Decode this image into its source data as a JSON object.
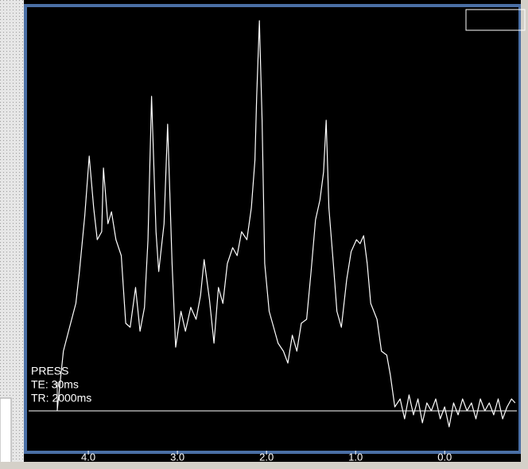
{
  "chart_data": {
    "type": "line",
    "annotations": [
      "PRESS",
      "TE: 30ms",
      "TR: 2000ms"
    ],
    "x": [
      4.35,
      4.28,
      4.21,
      4.14,
      4.1,
      4.04,
      3.99,
      3.94,
      3.9,
      3.85,
      3.83,
      3.78,
      3.74,
      3.69,
      3.63,
      3.58,
      3.53,
      3.47,
      3.42,
      3.37,
      3.33,
      3.29,
      3.24,
      3.21,
      3.15,
      3.11,
      3.06,
      3.02,
      2.96,
      2.91,
      2.85,
      2.79,
      2.74,
      2.7,
      2.64,
      2.59,
      2.54,
      2.49,
      2.44,
      2.38,
      2.33,
      2.28,
      2.22,
      2.17,
      2.13,
      2.11,
      2.08,
      2.05,
      2.02,
      1.97,
      1.92,
      1.87,
      1.81,
      1.76,
      1.71,
      1.66,
      1.61,
      1.55,
      1.5,
      1.45,
      1.4,
      1.36,
      1.33,
      1.3,
      1.25,
      1.21,
      1.16,
      1.1,
      1.05,
      0.99,
      0.95,
      0.91,
      0.87,
      0.83,
      0.76,
      0.71,
      0.65,
      0.61,
      0.56,
      0.5,
      0.45,
      0.4,
      0.35,
      0.3,
      0.25,
      0.2,
      0.15,
      0.1,
      0.05,
      0.0,
      -0.05,
      -0.1,
      -0.15,
      -0.2,
      -0.25,
      -0.3,
      -0.35,
      -0.4,
      -0.45,
      -0.5,
      -0.55,
      -0.6,
      -0.65,
      -0.7,
      -0.75,
      -0.79
    ],
    "series": [
      {
        "color": "#ffffff",
        "values": [
          0,
          15,
          21,
          27,
          35,
          49,
          64,
          51,
          43,
          45,
          61,
          47,
          50,
          43,
          39,
          22,
          21,
          31,
          20,
          26,
          43,
          79,
          45,
          35,
          47,
          72,
          37,
          16,
          25,
          20,
          26,
          23,
          29,
          38,
          28,
          17,
          31,
          27,
          37,
          41,
          39,
          45,
          43,
          51,
          63,
          79,
          98,
          73,
          37,
          25,
          21,
          17,
          15,
          12,
          19,
          15,
          22,
          23,
          35,
          48,
          53,
          60,
          73,
          51,
          37,
          25,
          21,
          33,
          40,
          43,
          42,
          44,
          37,
          27,
          23,
          15,
          14,
          9,
          1,
          3,
          -2,
          4,
          -1,
          3,
          -3,
          2,
          0,
          3,
          -2,
          1,
          -4,
          2,
          -1,
          3,
          0,
          2,
          -2,
          3,
          0,
          2,
          -1,
          3,
          -2,
          1,
          3,
          2
        ]
      }
    ],
    "xlim": [
      4.67,
      -0.81
    ],
    "ylim": [
      -9.8,
      100.8
    ],
    "xticks": [
      {
        "value": 4,
        "label": "4.0"
      },
      {
        "value": 3,
        "label": "3.0"
      },
      {
        "value": 2,
        "label": "2.0"
      },
      {
        "value": 1,
        "label": "1.0"
      },
      {
        "value": 0,
        "label": "0.0"
      }
    ]
  }
}
